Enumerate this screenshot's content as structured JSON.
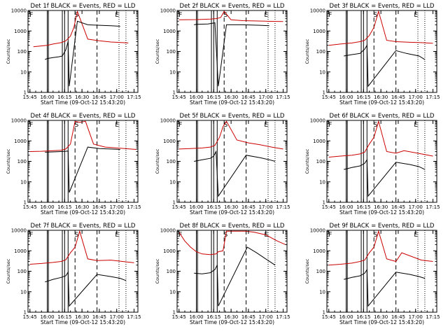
{
  "figure": {
    "background": "#ffffff",
    "colors": {
      "events": "#000000",
      "lld": "#cc0000"
    }
  },
  "chart_data": [
    {
      "type": "line",
      "title": "Det 1f BLACK = Events, RED = LLD",
      "xlabel": "Start Time (09-Oct-12 15:43:20)",
      "ylabel": "Counts/sec",
      "yscale": "log",
      "ylim": [
        1,
        10000
      ],
      "x_ticks": [
        "15:45",
        "16:00",
        "16:15",
        "16:30",
        "16:45",
        "17:00",
        "17:15"
      ],
      "y_ticks": [
        "1",
        "10",
        "100",
        "1000",
        "10000"
      ],
      "markers": [
        {
          "label": "F",
          "time": "15:44"
        },
        {
          "label": "S",
          "time": "16:23"
        },
        {
          "label": "E",
          "time": "16:58"
        }
      ],
      "attenuator_lines": [
        "16:00",
        "16:01",
        "16:13",
        "16:15",
        "16:18"
      ],
      "dashed_lines": [
        "16:24",
        "16:43"
      ],
      "dotted_lines": [
        "17:02",
        "17:08"
      ],
      "series": [
        {
          "name": "LLD",
          "color": "#cc0000",
          "x": [
            "15:48",
            "16:00",
            "16:05",
            "16:12",
            "16:16",
            "16:20",
            "16:23",
            "16:26",
            "16:35",
            "16:45",
            "16:55",
            "17:05",
            "17:10"
          ],
          "values": [
            170,
            200,
            230,
            270,
            330,
            560,
            1500,
            9000,
            400,
            330,
            290,
            270,
            260
          ]
        },
        {
          "name": "Events",
          "color": "#000000",
          "x": [
            "15:58",
            "16:00",
            "16:05",
            "16:10",
            "16:13",
            "16:16",
            "16:18",
            "16:19",
            "16:26",
            "16:35",
            "16:45",
            "16:55",
            "17:03"
          ],
          "values": [
            40,
            45,
            50,
            55,
            60,
            120,
            300,
            2,
            3000,
            2000,
            1900,
            1800,
            1700
          ]
        }
      ]
    },
    {
      "type": "line",
      "title": "Det 2f BLACK = Events, RED = LLD",
      "xlabel": "Start Time (09-Oct-12 15:43:20)",
      "ylabel": "Counts/sec",
      "yscale": "log",
      "ylim": [
        1,
        10000
      ],
      "x_ticks": [
        "15:45",
        "16:00",
        "16:15",
        "16:30",
        "16:45",
        "17:00",
        "17:15"
      ],
      "y_ticks": [
        "1",
        "10",
        "100",
        "1000",
        "10000"
      ],
      "markers": [
        {
          "label": "F",
          "time": "15:44"
        },
        {
          "label": "S",
          "time": "16:23"
        },
        {
          "label": "E",
          "time": "16:58"
        }
      ],
      "attenuator_lines": [
        "16:00",
        "16:01",
        "16:13",
        "16:15",
        "16:18"
      ],
      "dashed_lines": [
        "16:24",
        "16:43"
      ],
      "dotted_lines": [
        "17:02",
        "17:08"
      ],
      "series": [
        {
          "name": "LLD",
          "color": "#cc0000",
          "x": [
            "15:45",
            "16:00",
            "16:12",
            "16:17",
            "16:21",
            "16:24",
            "16:30",
            "16:40",
            "16:50",
            "17:00",
            "17:15"
          ],
          "values": [
            3500,
            3600,
            3800,
            4000,
            4500,
            9000,
            3500,
            3200,
            3100,
            3000,
            2900
          ]
        },
        {
          "name": "Events",
          "color": "#000000",
          "x": [
            "15:58",
            "16:00",
            "16:10",
            "16:16",
            "16:19",
            "16:26",
            "16:40",
            "16:55",
            "17:03"
          ],
          "values": [
            2000,
            2100,
            2200,
            2500,
            2,
            2000,
            2000,
            1900,
            1800
          ]
        }
      ]
    },
    {
      "type": "line",
      "title": "Det 3f BLACK = Events, RED = LLD",
      "xlabel": "Start Time (09-Oct-12 15:43:20)",
      "ylabel": "Counts/sec",
      "yscale": "log",
      "ylim": [
        1,
        10000
      ],
      "x_ticks": [
        "15:45",
        "16:00",
        "16:15",
        "16:30",
        "16:45",
        "17:00",
        "17:15"
      ],
      "y_ticks": [
        "1",
        "10",
        "100",
        "1000",
        "10000"
      ],
      "markers": [
        {
          "label": "F",
          "time": "15:44"
        },
        {
          "label": "S",
          "time": "16:23"
        },
        {
          "label": "E",
          "time": "16:58"
        }
      ],
      "attenuator_lines": [
        "16:00",
        "16:01",
        "16:13",
        "16:15",
        "16:18"
      ],
      "dashed_lines": [
        "16:24",
        "16:43"
      ],
      "dotted_lines": [
        "17:02",
        "17:08"
      ],
      "series": [
        {
          "name": "LLD",
          "color": "#cc0000",
          "x": [
            "15:45",
            "15:55",
            "16:05",
            "16:12",
            "16:16",
            "16:20",
            "16:24",
            "16:28",
            "16:35",
            "16:43",
            "16:55",
            "17:05",
            "17:15"
          ],
          "values": [
            200,
            230,
            260,
            300,
            350,
            600,
            1500,
            9000,
            350,
            300,
            280,
            270,
            250
          ]
        },
        {
          "name": "Events",
          "color": "#000000",
          "x": [
            "15:58",
            "16:05",
            "16:12",
            "16:16",
            "16:18",
            "16:19",
            "16:43",
            "16:52",
            "17:03",
            "17:08"
          ],
          "values": [
            60,
            70,
            80,
            130,
            200,
            2,
            110,
            80,
            60,
            40
          ]
        }
      ]
    },
    {
      "type": "line",
      "title": "Det 4f BLACK = Events, RED = LLD",
      "xlabel": "Start Time (09-Oct-12 15:43:20)",
      "ylabel": "Counts/sec",
      "yscale": "log",
      "ylim": [
        1,
        10000
      ],
      "x_ticks": [
        "15:45",
        "16:00",
        "16:15",
        "16:30",
        "16:45",
        "17:00",
        "17:15"
      ],
      "y_ticks": [
        "1",
        "10",
        "100",
        "1000",
        "10000"
      ],
      "markers": [
        {
          "label": "F",
          "time": "15:44"
        },
        {
          "label": "S",
          "time": "16:23"
        },
        {
          "label": "E",
          "time": "16:58"
        }
      ],
      "attenuator_lines": [
        "16:00",
        "16:01",
        "16:13",
        "16:15",
        "16:18"
      ],
      "dashed_lines": [
        "16:24",
        "16:43"
      ],
      "dotted_lines": [
        "17:02",
        "17:08"
      ],
      "series": [
        {
          "name": "LLD",
          "color": "#cc0000",
          "x": [
            "15:45",
            "15:55",
            "16:05",
            "16:12",
            "16:16",
            "16:20",
            "16:24",
            "16:28",
            "16:33",
            "16:40",
            "16:50",
            "17:05",
            "17:17"
          ],
          "values": [
            300,
            310,
            330,
            350,
            400,
            700,
            9000,
            8000,
            9000,
            700,
            500,
            430,
            380
          ]
        },
        {
          "name": "Events",
          "color": "#000000",
          "x": [
            "15:58",
            "16:05",
            "16:12",
            "16:16",
            "16:18",
            "16:19",
            "16:35",
            "16:45",
            "16:55",
            "17:03"
          ],
          "values": [
            280,
            290,
            300,
            310,
            320,
            3,
            500,
            420,
            400,
            380
          ]
        }
      ]
    },
    {
      "type": "line",
      "title": "Det 5f BLACK = Events, RED = LLD",
      "xlabel": "Start Time (09-Oct-12 15:43:20)",
      "ylabel": "Counts/sec",
      "yscale": "log",
      "ylim": [
        1,
        10000
      ],
      "x_ticks": [
        "15:45",
        "16:00",
        "16:15",
        "16:30",
        "16:45",
        "17:00",
        "17:15"
      ],
      "y_ticks": [
        "1",
        "10",
        "100",
        "1000",
        "10000"
      ],
      "markers": [
        {
          "label": "F",
          "time": "15:44"
        },
        {
          "label": "S",
          "time": "16:23"
        },
        {
          "label": "E",
          "time": "16:58"
        }
      ],
      "attenuator_lines": [
        "16:00",
        "16:01",
        "16:13",
        "16:15",
        "16:18"
      ],
      "dashed_lines": [
        "16:24",
        "16:43"
      ],
      "dotted_lines": [
        "17:02",
        "17:08"
      ],
      "series": [
        {
          "name": "LLD",
          "color": "#cc0000",
          "x": [
            "15:45",
            "15:55",
            "16:05",
            "16:12",
            "16:16",
            "16:20",
            "16:23",
            "16:26",
            "16:35",
            "16:45",
            "16:55",
            "17:05",
            "17:15"
          ],
          "values": [
            400,
            420,
            450,
            500,
            600,
            1500,
            5000,
            9000,
            1100,
            800,
            650,
            500,
            400
          ]
        },
        {
          "name": "Events",
          "color": "#000000",
          "x": [
            "15:58",
            "16:05",
            "16:12",
            "16:15",
            "16:17",
            "16:19",
            "16:43",
            "16:55",
            "17:03",
            "17:08"
          ],
          "values": [
            100,
            120,
            140,
            180,
            300,
            2,
            200,
            150,
            120,
            100
          ]
        }
      ]
    },
    {
      "type": "line",
      "title": "Det 6f BLACK = Events, RED = LLD",
      "xlabel": "Start Time (09-Oct-12 15:43:20)",
      "ylabel": "Counts/sec",
      "yscale": "log",
      "ylim": [
        1,
        10000
      ],
      "x_ticks": [
        "15:45",
        "16:00",
        "16:15",
        "16:30",
        "16:45",
        "17:00",
        "17:15"
      ],
      "y_ticks": [
        "1",
        "10",
        "100",
        "1000",
        "10000"
      ],
      "markers": [
        {
          "label": "F",
          "time": "15:44"
        },
        {
          "label": "S",
          "time": "16:23"
        },
        {
          "label": "E",
          "time": "16:58"
        }
      ],
      "attenuator_lines": [
        "16:00",
        "16:01",
        "16:13",
        "16:15",
        "16:18"
      ],
      "dashed_lines": [
        "16:24",
        "16:43"
      ],
      "dotted_lines": [
        "17:02",
        "17:08"
      ],
      "series": [
        {
          "name": "LLD",
          "color": "#cc0000",
          "x": [
            "15:45",
            "15:55",
            "16:05",
            "16:12",
            "16:16",
            "16:20",
            "16:24",
            "16:28",
            "16:35",
            "16:43",
            "16:50",
            "17:05",
            "17:15"
          ],
          "values": [
            160,
            180,
            200,
            230,
            280,
            700,
            1500,
            9000,
            300,
            250,
            330,
            230,
            180
          ]
        },
        {
          "name": "Events",
          "color": "#000000",
          "x": [
            "15:58",
            "16:05",
            "16:12",
            "16:16",
            "16:18",
            "16:19",
            "16:43",
            "16:55",
            "17:03",
            "17:08"
          ],
          "values": [
            40,
            50,
            60,
            80,
            120,
            2,
            90,
            70,
            55,
            40
          ]
        }
      ]
    },
    {
      "type": "line",
      "title": "Det 7f BLACK = Events, RED = LLD",
      "xlabel": "Start Time (09-Oct-12 15:43:20)",
      "ylabel": "Counts/sec",
      "yscale": "log",
      "ylim": [
        1,
        10000
      ],
      "x_ticks": [
        "15:45",
        "16:00",
        "16:15",
        "16:30",
        "16:45",
        "17:00",
        "17:15"
      ],
      "y_ticks": [
        "1",
        "10",
        "100",
        "1000",
        "10000"
      ],
      "markers": [
        {
          "label": "F",
          "time": "15:44"
        },
        {
          "label": "S",
          "time": "16:23"
        },
        {
          "label": "E",
          "time": "16:58"
        }
      ],
      "attenuator_lines": [
        "16:00",
        "16:01",
        "16:13",
        "16:15",
        "16:18"
      ],
      "dashed_lines": [
        "16:24",
        "16:43"
      ],
      "dotted_lines": [
        "17:02",
        "17:08"
      ],
      "series": [
        {
          "name": "LLD",
          "color": "#cc0000",
          "x": [
            "15:45",
            "15:55",
            "16:05",
            "16:12",
            "16:16",
            "16:20",
            "16:24",
            "16:28",
            "16:35",
            "16:43",
            "16:55",
            "17:05",
            "17:15"
          ],
          "values": [
            220,
            240,
            270,
            300,
            360,
            800,
            1500,
            9000,
            400,
            330,
            350,
            300,
            260
          ]
        },
        {
          "name": "Events",
          "color": "#000000",
          "x": [
            "15:58",
            "16:05",
            "16:12",
            "16:16",
            "16:18",
            "16:19",
            "16:43",
            "16:55",
            "17:03",
            "17:08"
          ],
          "values": [
            30,
            40,
            50,
            60,
            90,
            2,
            70,
            55,
            45,
            35
          ]
        }
      ]
    },
    {
      "type": "line",
      "title": "Det 8f BLACK = Events, RED = LLD",
      "xlabel": "Start Time (09-Oct-12 15:43:20)",
      "ylabel": "Counts/sec",
      "yscale": "log",
      "ylim": [
        1,
        10000
      ],
      "x_ticks": [
        "15:45",
        "16:00",
        "16:15",
        "16:30",
        "16:45",
        "17:00",
        "17:15"
      ],
      "y_ticks": [
        "1",
        "10",
        "100",
        "1000",
        "10000"
      ],
      "markers": [
        {
          "label": "F",
          "time": "15:44"
        },
        {
          "label": "S",
          "time": "16:23"
        },
        {
          "label": "E",
          "time": "16:58"
        }
      ],
      "attenuator_lines": [
        "16:00",
        "16:01",
        "16:13",
        "16:15",
        "16:18"
      ],
      "dashed_lines": [
        "16:24",
        "16:43"
      ],
      "dotted_lines": [
        "17:02",
        "17:08"
      ],
      "series": [
        {
          "name": "LLD",
          "color": "#cc0000",
          "x": [
            "15:45",
            "15:50",
            "15:55",
            "16:00",
            "16:05",
            "16:12",
            "16:17",
            "16:19",
            "16:23",
            "16:26",
            "16:30",
            "16:43",
            "16:50",
            "17:00",
            "17:10",
            "17:17"
          ],
          "values": [
            8000,
            3000,
            1500,
            900,
            700,
            650,
            700,
            900,
            1000,
            9000,
            9000,
            9000,
            8000,
            6000,
            3000,
            2000
          ]
        },
        {
          "name": "Events",
          "color": "#000000",
          "x": [
            "15:58",
            "16:05",
            "16:12",
            "16:16",
            "16:18",
            "16:19",
            "16:44",
            "16:52",
            "17:00",
            "17:08"
          ],
          "values": [
            80,
            75,
            85,
            120,
            200,
            2,
            1500,
            800,
            400,
            200
          ]
        }
      ]
    },
    {
      "type": "line",
      "title": "Det 9f BLACK = Events, RED = LLD",
      "xlabel": "Start Time (09-Oct-12 15:43:20)",
      "ylabel": "Counts/sec",
      "yscale": "log",
      "ylim": [
        1,
        10000
      ],
      "x_ticks": [
        "15:45",
        "16:00",
        "16:15",
        "16:30",
        "16:45",
        "17:00",
        "17:15"
      ],
      "y_ticks": [
        "1",
        "10",
        "100",
        "1000",
        "10000"
      ],
      "markers": [
        {
          "label": "F",
          "time": "15:44"
        },
        {
          "label": "S",
          "time": "16:23"
        },
        {
          "label": "E",
          "time": "16:58"
        }
      ],
      "attenuator_lines": [
        "16:00",
        "16:01",
        "16:13",
        "16:15",
        "16:18"
      ],
      "dashed_lines": [
        "16:24",
        "16:43"
      ],
      "dotted_lines": [
        "17:02",
        "17:08"
      ],
      "series": [
        {
          "name": "LLD",
          "color": "#cc0000",
          "x": [
            "15:45",
            "15:55",
            "16:05",
            "16:12",
            "16:16",
            "16:20",
            "16:24",
            "16:28",
            "16:35",
            "16:43",
            "16:48",
            "17:05",
            "17:15"
          ],
          "values": [
            200,
            220,
            250,
            300,
            350,
            800,
            1500,
            9000,
            400,
            300,
            800,
            350,
            300
          ]
        },
        {
          "name": "Events",
          "color": "#000000",
          "x": [
            "15:58",
            "16:05",
            "16:12",
            "16:16",
            "16:18",
            "16:19",
            "16:43",
            "16:55",
            "17:03",
            "17:08"
          ],
          "values": [
            40,
            50,
            60,
            80,
            120,
            2,
            90,
            70,
            55,
            45
          ]
        }
      ]
    }
  ]
}
